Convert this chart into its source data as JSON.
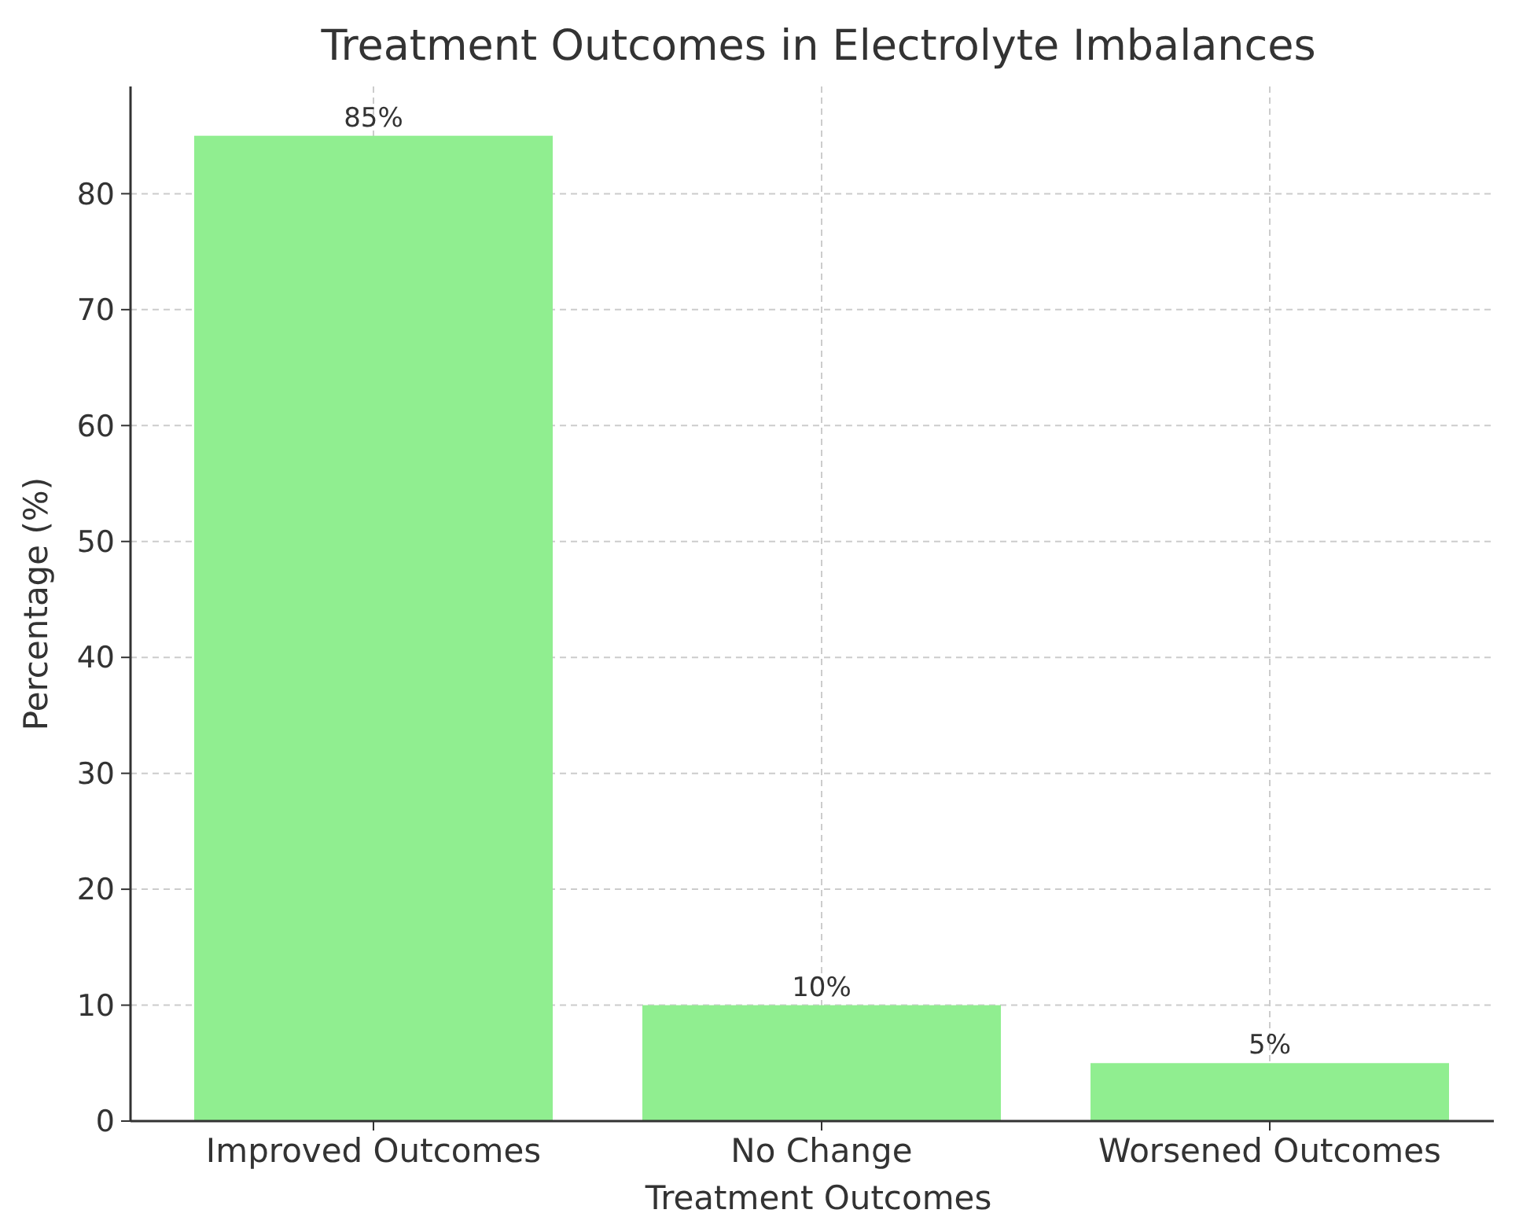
{
  "chart_data": {
    "type": "bar",
    "title": "Treatment Outcomes in Electrolyte Imbalances",
    "xlabel": "Treatment Outcomes",
    "ylabel": "Percentage (%)",
    "categories": [
      "Improved Outcomes",
      "No Change",
      "Worsened Outcomes"
    ],
    "values": [
      85,
      10,
      5
    ],
    "color": "#90ee90",
    "value_labels": [
      "85%",
      "10%",
      "5%"
    ],
    "ylim": [
      0,
      89.25
    ],
    "yticks": [
      0,
      10,
      20,
      30,
      40,
      50,
      60,
      70,
      80
    ],
    "grid": true
  }
}
